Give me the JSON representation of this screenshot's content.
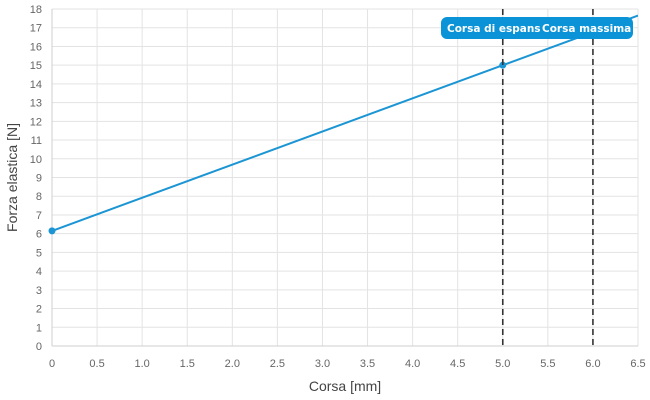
{
  "chart_data": {
    "type": "line",
    "xlabel": "Corsa [mm]",
    "ylabel": "Forza elastica [N]",
    "xlim": [
      0,
      6.5
    ],
    "ylim": [
      0,
      18
    ],
    "x_ticks": [
      "0",
      "0.5",
      "1.0",
      "1.5",
      "2.0",
      "2.5",
      "3.0",
      "3.5",
      "4.0",
      "4.5",
      "5.0",
      "5.5",
      "6.0",
      "6.5"
    ],
    "y_ticks": [
      "0",
      "1",
      "2",
      "3",
      "4",
      "5",
      "6",
      "7",
      "8",
      "9",
      "10",
      "11",
      "12",
      "13",
      "14",
      "15",
      "16",
      "17",
      "18"
    ],
    "grid": true,
    "series": [
      {
        "color": "#1b95d3",
        "points": [
          {
            "x": 0,
            "y": 6.15,
            "marker": true
          },
          {
            "x": 5.0,
            "y": 15.0,
            "marker": true
          },
          {
            "x": 6.5,
            "y": 17.65,
            "marker": false
          }
        ]
      }
    ],
    "annotations": [
      {
        "x": 5.0,
        "label": "Corsa di espansione",
        "shown_label": "Corsa di espans",
        "color": "#333333",
        "box_color": "#0a93d6"
      },
      {
        "x": 6.0,
        "label": "Corsa massima",
        "shown_label": "Corsa massima",
        "color": "#333333",
        "box_color": "#0a93d6"
      }
    ]
  }
}
